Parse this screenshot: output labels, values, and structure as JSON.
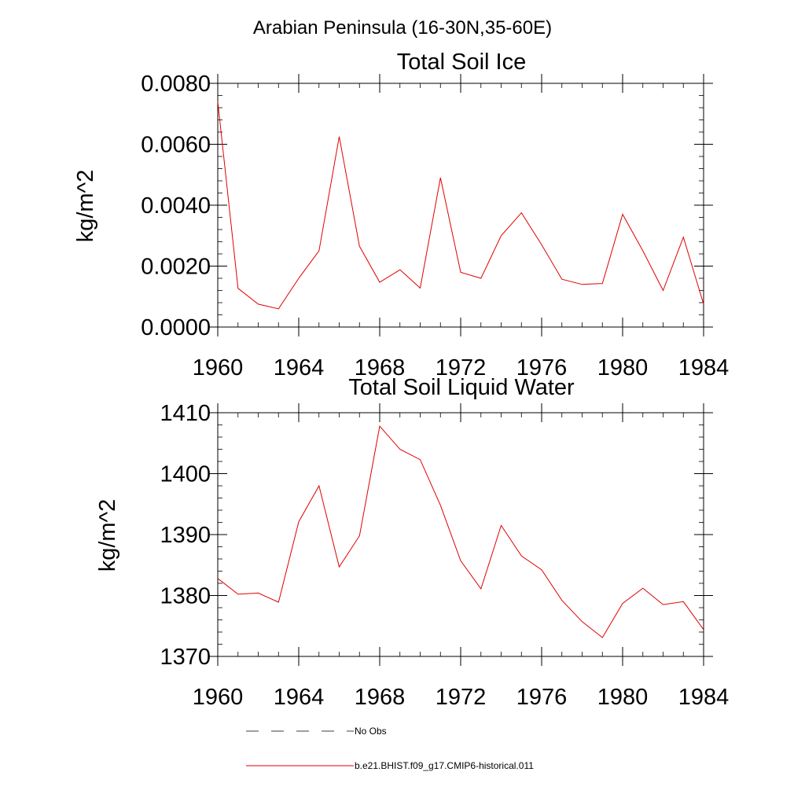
{
  "figure": {
    "main_title": "Arabian Peninsula (16-30N,35-60E)"
  },
  "legend": {
    "entries": [
      {
        "label": "No Obs",
        "color": "#000000",
        "dash": "dashed"
      },
      {
        "label": "b.e21.BHIST.f09_g17.CMIP6-historical.011",
        "color": "#e00000",
        "dash": "solid"
      }
    ]
  },
  "chart_data": [
    {
      "type": "line",
      "title": "Total Soil Ice",
      "ylabel": "kg/m^2",
      "xlabel": "",
      "xlim": [
        1960,
        1984
      ],
      "ylim": [
        0,
        0.008
      ],
      "xticks": [
        1960,
        1964,
        1968,
        1972,
        1976,
        1980,
        1984
      ],
      "xtick_labels": [
        "1960",
        "1964",
        "1968",
        "1972",
        "1976",
        "1980",
        "1984"
      ],
      "yticks": [
        0,
        0.002,
        0.004,
        0.006,
        0.008
      ],
      "ytick_labels": [
        "0.0000",
        "0.0020",
        "0.0040",
        "0.0060",
        "0.0080"
      ],
      "x": [
        1960,
        1961,
        1962,
        1963,
        1964,
        1965,
        1966,
        1967,
        1968,
        1969,
        1970,
        1971,
        1972,
        1973,
        1974,
        1975,
        1976,
        1977,
        1978,
        1979,
        1980,
        1981,
        1982,
        1983,
        1984
      ],
      "series": [
        {
          "name": "b.e21.BHIST.f09_g17.CMIP6-historical.011",
          "color": "#e00000",
          "values": [
            0.0074,
            0.00127,
            0.00075,
            0.0006,
            0.0016,
            0.0025,
            0.00625,
            0.00265,
            0.00147,
            0.00188,
            0.00128,
            0.0049,
            0.0018,
            0.0016,
            0.003,
            0.00375,
            0.0027,
            0.00157,
            0.0014,
            0.00143,
            0.0037,
            0.0025,
            0.0012,
            0.00295,
            0.00075
          ]
        }
      ]
    },
    {
      "type": "line",
      "title": "Total Soil Liquid Water",
      "ylabel": "kg/m^2",
      "xlabel": "",
      "xlim": [
        1960,
        1984
      ],
      "ylim": [
        1370,
        1410
      ],
      "xticks": [
        1960,
        1964,
        1968,
        1972,
        1976,
        1980,
        1984
      ],
      "xtick_labels": [
        "1960",
        "1964",
        "1968",
        "1972",
        "1976",
        "1980",
        "1984"
      ],
      "yticks": [
        1370,
        1380,
        1390,
        1400,
        1410
      ],
      "ytick_labels": [
        "1370",
        "1380",
        "1390",
        "1400",
        "1410"
      ],
      "x": [
        1960,
        1961,
        1962,
        1963,
        1964,
        1965,
        1966,
        1967,
        1968,
        1969,
        1970,
        1971,
        1972,
        1973,
        1974,
        1975,
        1976,
        1977,
        1978,
        1979,
        1980,
        1981,
        1982,
        1983,
        1984
      ],
      "series": [
        {
          "name": "b.e21.BHIST.f09_g17.CMIP6-historical.011",
          "color": "#e00000",
          "values": [
            1382.8,
            1380.2,
            1380.4,
            1378.9,
            1392.1,
            1398.0,
            1384.7,
            1389.8,
            1407.8,
            1404.0,
            1402.3,
            1394.8,
            1385.7,
            1381.1,
            1391.5,
            1386.5,
            1384.2,
            1379.2,
            1375.7,
            1373.1,
            1378.7,
            1381.2,
            1378.5,
            1379.0,
            1374.4
          ]
        }
      ]
    }
  ]
}
